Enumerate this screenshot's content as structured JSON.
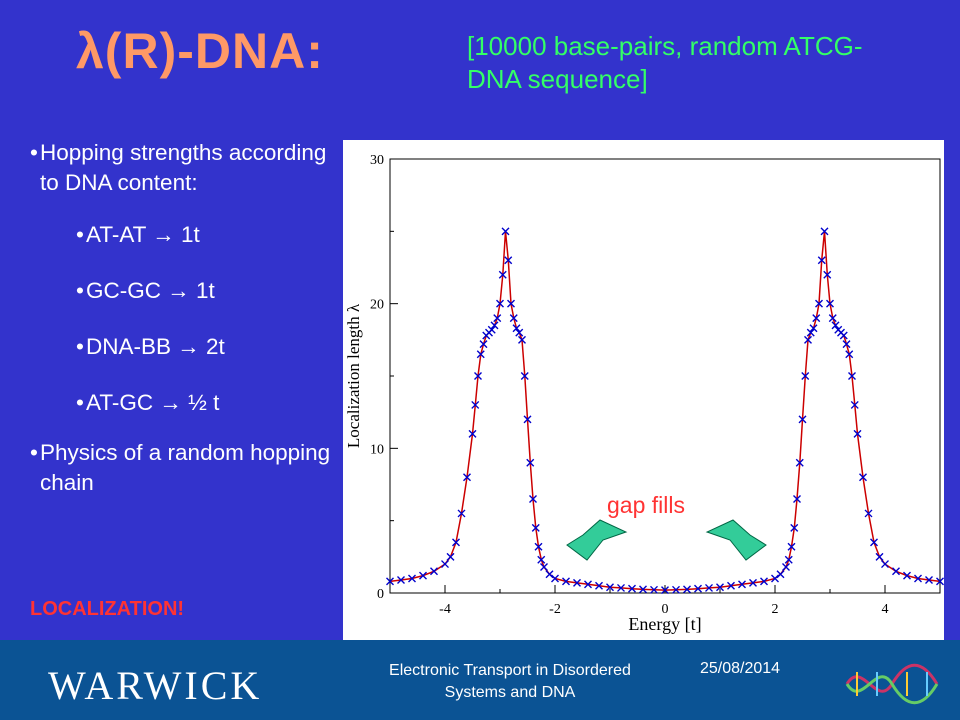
{
  "slide": {
    "title": "λ(R)-DNA:",
    "subtitle": "[10000 base-pairs, random ATCG-DNA sequence]",
    "bullets": [
      "Hopping strengths according to DNA content:",
      "AT-AT → 1t",
      "GC-GC → 1t",
      "DNA-BB → 2t",
      "AT-GC → ½ t",
      "Physics of a random hopping chain"
    ],
    "emphasis": "LOCALIZATION!",
    "annotation": "gap fills"
  },
  "footer": {
    "logo_text": "WARWICK",
    "talk_title": "Electronic Transport in Disordered Systems and DNA",
    "date": "25/08/2014"
  },
  "colors": {
    "background": "#3333cc",
    "title": "#ff9966",
    "subtitle": "#33ff66",
    "emphasis": "#ff3333",
    "footer": "#0b5394",
    "line": "#cc0000",
    "markers": "#0000cc",
    "arrow": "#33cc99"
  },
  "chart_data": {
    "type": "line",
    "xlabel": "Energy [t]",
    "ylabel": "Localization length λ",
    "xlim": [
      -5,
      5
    ],
    "ylim": [
      0,
      30
    ],
    "xticks": [
      "-4",
      "-2",
      "0",
      "2",
      "4"
    ],
    "yticks": [
      "0",
      "10",
      "20",
      "30"
    ],
    "series": [
      {
        "marker": "x",
        "x": [
          -5.0,
          -4.8,
          -4.6,
          -4.4,
          -4.2,
          -4.0,
          -3.9,
          -3.8,
          -3.7,
          -3.6,
          -3.5,
          -3.45,
          -3.4,
          -3.35,
          -3.3,
          -3.25,
          -3.2,
          -3.15,
          -3.1,
          -3.05,
          -3.0,
          -2.95,
          -2.9,
          -2.85,
          -2.8,
          -2.75,
          -2.7,
          -2.65,
          -2.6,
          -2.55,
          -2.5,
          -2.45,
          -2.4,
          -2.35,
          -2.3,
          -2.25,
          -2.2,
          -2.1,
          -2.0,
          -1.8,
          -1.6,
          -1.4,
          -1.2,
          -1.0,
          -0.8,
          -0.6,
          -0.4,
          -0.2,
          0.0,
          0.2,
          0.4,
          0.6,
          0.8,
          1.0,
          1.2,
          1.4,
          1.6,
          1.8,
          2.0,
          2.1,
          2.2,
          2.25,
          2.3,
          2.35,
          2.4,
          2.45,
          2.5,
          2.55,
          2.6,
          2.65,
          2.7,
          2.75,
          2.8,
          2.85,
          2.9,
          2.95,
          3.0,
          3.05,
          3.1,
          3.15,
          3.2,
          3.25,
          3.3,
          3.35,
          3.4,
          3.45,
          3.5,
          3.6,
          3.7,
          3.8,
          3.9,
          4.0,
          4.2,
          4.4,
          4.6,
          4.8,
          5.0
        ],
        "y": [
          0.8,
          0.9,
          1.0,
          1.2,
          1.5,
          2.0,
          2.5,
          3.5,
          5.5,
          8.0,
          11.0,
          13.0,
          15.0,
          16.5,
          17.2,
          17.8,
          18.0,
          18.2,
          18.5,
          19.0,
          20.0,
          22.0,
          25.0,
          23.0,
          20.0,
          19.0,
          18.3,
          18.0,
          17.5,
          15.0,
          12.0,
          9.0,
          6.5,
          4.5,
          3.2,
          2.3,
          1.8,
          1.3,
          1.0,
          0.8,
          0.7,
          0.6,
          0.5,
          0.4,
          0.35,
          0.3,
          0.25,
          0.22,
          0.2,
          0.22,
          0.25,
          0.3,
          0.35,
          0.4,
          0.5,
          0.6,
          0.7,
          0.8,
          1.0,
          1.3,
          1.8,
          2.3,
          3.2,
          4.5,
          6.5,
          9.0,
          12.0,
          15.0,
          17.5,
          18.0,
          18.3,
          19.0,
          20.0,
          23.0,
          25.0,
          22.0,
          20.0,
          19.0,
          18.5,
          18.2,
          18.0,
          17.8,
          17.2,
          16.5,
          15.0,
          13.0,
          11.0,
          8.0,
          5.5,
          3.5,
          2.5,
          2.0,
          1.5,
          1.2,
          1.0,
          0.9,
          0.8
        ]
      }
    ]
  }
}
